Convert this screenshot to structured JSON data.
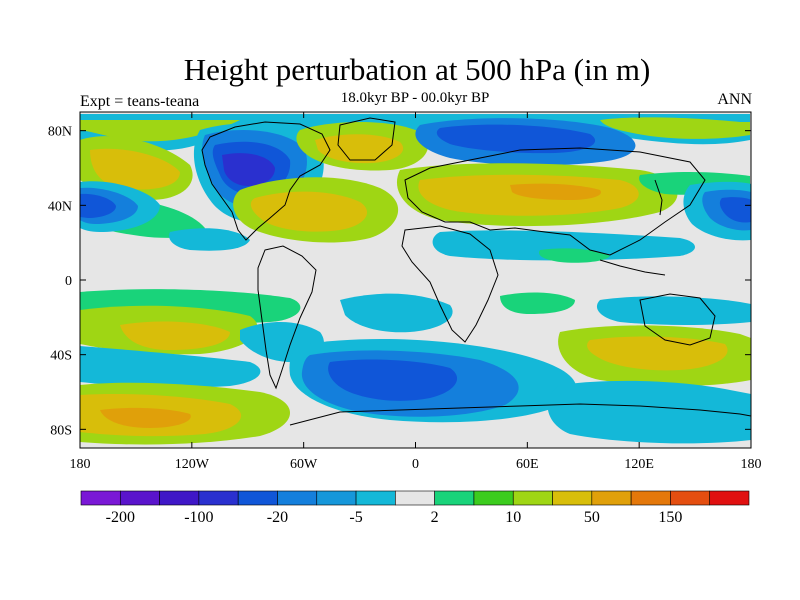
{
  "title": "Height perturbation at 500 hPa (in m)",
  "subtitle": "18.0kyr BP - 00.0kyr BP",
  "left_label": "Expt = teans-teana",
  "right_label": "ANN",
  "lat_labels": [
    "80N",
    "40N",
    "0",
    "40S",
    "80S"
  ],
  "lon_labels": [
    "180",
    "120W",
    "60W",
    "0",
    "60E",
    "120E",
    "180"
  ],
  "colorbar": {
    "colors": [
      "#7a18d6",
      "#5a14cc",
      "#3f17c7",
      "#2a30cf",
      "#1056d8",
      "#147fdc",
      "#1697da",
      "#14b8d8",
      "#e6e6e6",
      "#19d37a",
      "#3ccc1e",
      "#9fd614",
      "#d8be0a",
      "#e0a00a",
      "#e4780a",
      "#e44e10",
      "#e01010"
    ],
    "tick_labels": [
      "-200",
      "-100",
      "-20",
      "-5",
      "2",
      "10",
      "50",
      "150"
    ]
  },
  "legend_colors": {
    "strong_neg": "#2a30cf",
    "neg": "#147fdc",
    "weak_neg": "#14b8d8",
    "neutral": "#e6e6e6",
    "weak_pos": "#19d37a",
    "pos": "#9fd614",
    "strong_pos": "#d8be0a"
  }
}
